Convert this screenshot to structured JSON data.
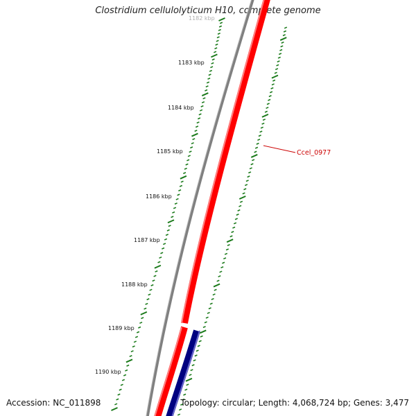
{
  "title": "Clostridium cellulolyticum H10, complete genome",
  "accession": "Accession: NC_011898",
  "summary": "Topology: circular; Length: 4,068,724 bp; Genes: 3,477",
  "tick_labels": [
    "1182 kbp",
    "1183 kbp",
    "1184 kbp",
    "1185 kbp",
    "1186 kbp",
    "1187 kbp",
    "1188 kbp",
    "1189 kbp",
    "1190 kbp"
  ],
  "gene_label": "Ccel_0977",
  "colors": {
    "backbone": "#808080",
    "forward_gene": "#ff0000",
    "reverse_gene": "#000080",
    "tick": "#1a7a1a",
    "label": "#cc0000"
  }
}
